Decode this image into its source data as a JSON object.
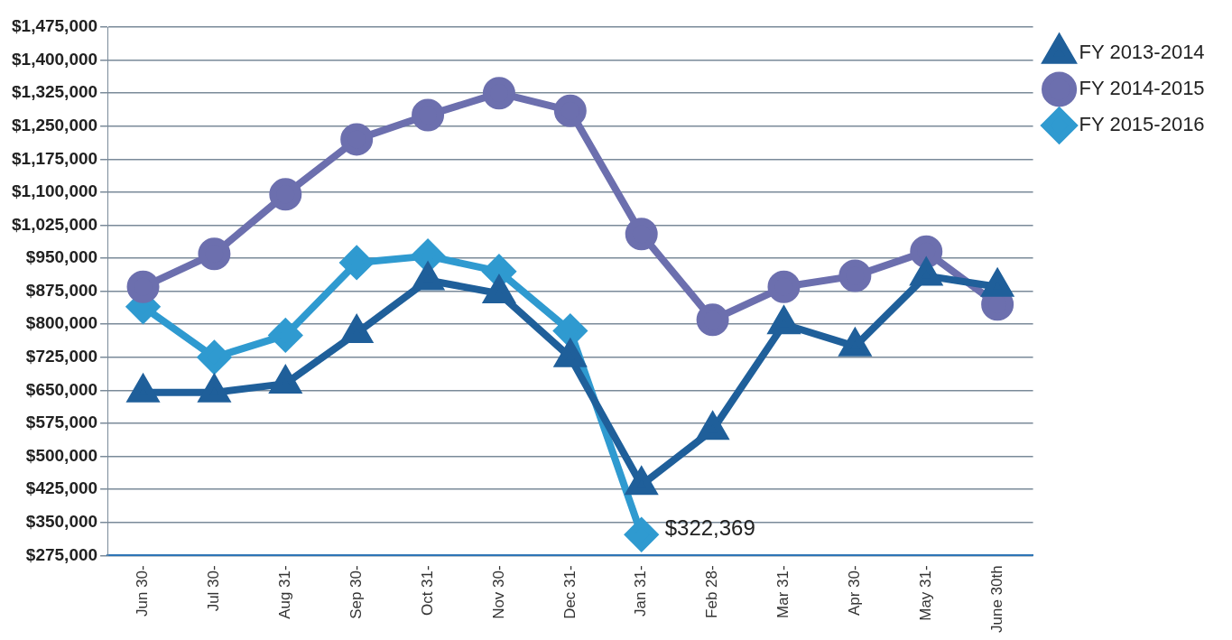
{
  "chart_data": {
    "type": "line",
    "categories": [
      "Jun 30-",
      "Jul 30-",
      "Aug 31-",
      "Sep 30-",
      "Oct 31-",
      "Nov 30-",
      "Dec 31-",
      "Jan 31-",
      "Feb 28-",
      "Mar 31-",
      "Apr 30-",
      "May 31-",
      "June 30th"
    ],
    "series": [
      {
        "name": "FY 2013-2014",
        "color": "#1f5f9a",
        "marker": "triangle",
        "values": [
          645000,
          645000,
          665000,
          780000,
          900000,
          870000,
          725000,
          435000,
          560000,
          800000,
          750000,
          910000,
          885000
        ]
      },
      {
        "name": "FY 2014-2015",
        "color": "#6c6fae",
        "marker": "circle",
        "values": [
          885000,
          960000,
          1095000,
          1220000,
          1275000,
          1325000,
          1285000,
          1005000,
          810000,
          885000,
          910000,
          965000,
          845000
        ]
      },
      {
        "name": "FY 2015-2016",
        "color": "#2f9ad0",
        "marker": "diamond",
        "values": [
          840000,
          725000,
          775000,
          940000,
          955000,
          920000,
          785000,
          322369,
          null,
          null,
          null,
          null,
          null
        ]
      }
    ],
    "ylim": [
      275000,
      1475000
    ],
    "yticks": [
      {
        "value": 275000,
        "label": "$275,000"
      },
      {
        "value": 350000,
        "label": "$350,000"
      },
      {
        "value": 425000,
        "label": "$425,000"
      },
      {
        "value": 500000,
        "label": "$500,000"
      },
      {
        "value": 575000,
        "label": "$575,000"
      },
      {
        "value": 650000,
        "label": "$650,000"
      },
      {
        "value": 725000,
        "label": "$725,000"
      },
      {
        "value": 800000,
        "label": "$800,000"
      },
      {
        "value": 875000,
        "label": "$875,000"
      },
      {
        "value": 950000,
        "label": "$950,000"
      },
      {
        "value": 1025000,
        "label": "$1,025,000"
      },
      {
        "value": 1100000,
        "label": "$1,100,000"
      },
      {
        "value": 1175000,
        "label": "$1,175,000"
      },
      {
        "value": 1250000,
        "label": "$1,250,000"
      },
      {
        "value": 1325000,
        "label": "$1,325,000"
      },
      {
        "value": 1400000,
        "label": "$1,400,000"
      },
      {
        "value": 1475000,
        "label": "$1,475,000"
      }
    ],
    "grid": "y",
    "legend": "right",
    "annotations": [
      {
        "text": "$322,369",
        "x": "Jan 31-",
        "y": 322369
      }
    ]
  }
}
